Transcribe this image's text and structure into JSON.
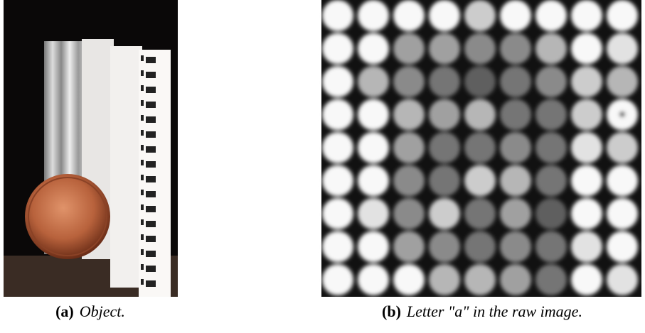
{
  "figure": {
    "panels": [
      {
        "label": "(a)",
        "caption": "Object."
      },
      {
        "label": "(b)",
        "caption": "Letter \"a\" in the raw image."
      }
    ]
  }
}
